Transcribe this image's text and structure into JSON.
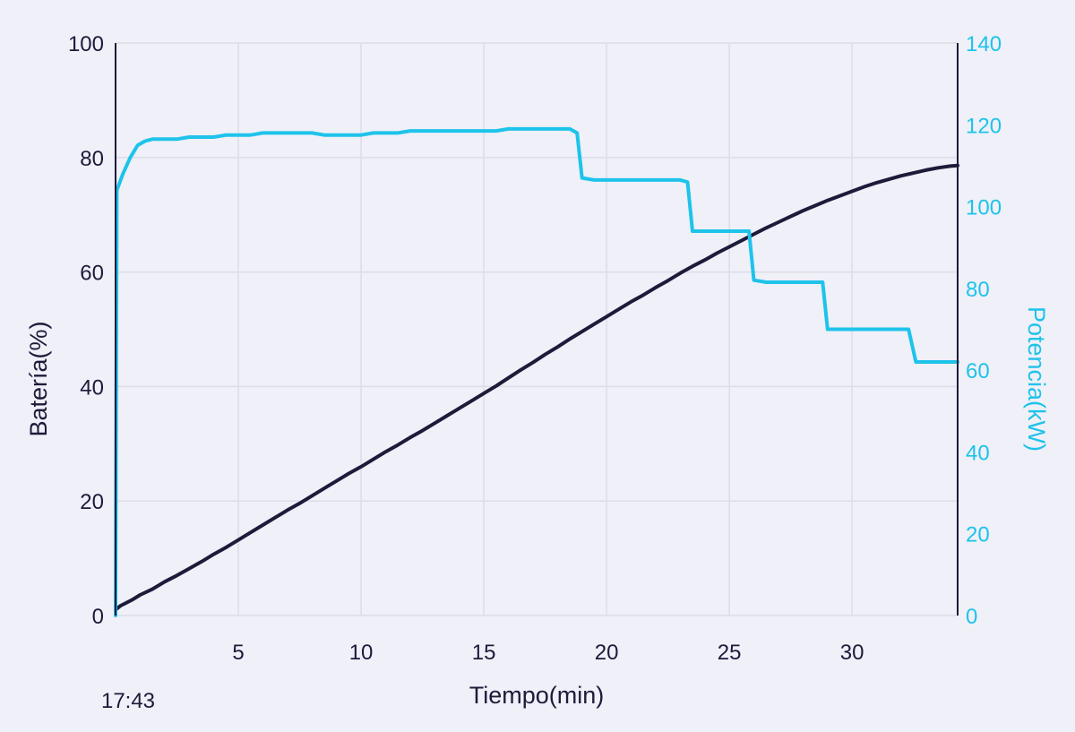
{
  "chart_data": {
    "type": "line",
    "xlabel": "Tiempo(min)",
    "ylabel_left": "Batería(%)",
    "ylabel_right": "Potencia(kW)",
    "time_label": "17:43",
    "xlim": [
      0,
      34.3
    ],
    "ylim_left": [
      0,
      100
    ],
    "ylim_right": [
      0,
      140
    ],
    "x_ticks": [
      5,
      10,
      15,
      20,
      25,
      30
    ],
    "y_left_ticks": [
      0,
      20,
      40,
      60,
      80,
      100
    ],
    "y_right_ticks": [
      0,
      20,
      40,
      60,
      80,
      100,
      120,
      140
    ],
    "grid": true,
    "colors": {
      "battery": "#1c1b3a",
      "power": "#1ec3ea",
      "grid": "#dcdde8",
      "background": "#eff0f8"
    },
    "series": [
      {
        "axis": "left",
        "x": [
          0,
          0.2,
          0.7,
          1.0,
          1.5,
          2.0,
          2.5,
          3.0,
          3.5,
          4.0,
          4.5,
          5.0,
          5.5,
          6.0,
          6.5,
          7.0,
          7.5,
          8.0,
          8.5,
          9.0,
          9.5,
          10.0,
          10.5,
          11.0,
          11.5,
          12.0,
          12.5,
          13.0,
          13.5,
          14.0,
          14.5,
          15.0,
          15.5,
          16.0,
          16.5,
          17.0,
          17.5,
          18.0,
          18.5,
          19.0,
          19.5,
          20.0,
          20.5,
          21.0,
          21.5,
          22.0,
          22.5,
          23.0,
          23.5,
          24.0,
          24.5,
          25.0,
          25.5,
          26.0,
          26.5,
          27.0,
          27.5,
          28.0,
          28.5,
          29.0,
          29.5,
          30.0,
          30.5,
          31.0,
          31.5,
          32.0,
          32.5,
          33.0,
          33.5,
          34.0,
          34.3
        ],
        "values": [
          1.0,
          1.7,
          2.8,
          3.6,
          4.6,
          5.9,
          7.0,
          8.2,
          9.4,
          10.7,
          11.9,
          13.2,
          14.5,
          15.8,
          17.1,
          18.4,
          19.6,
          20.9,
          22.2,
          23.5,
          24.8,
          26.0,
          27.3,
          28.6,
          29.8,
          31.1,
          32.3,
          33.6,
          34.9,
          36.2,
          37.5,
          38.8,
          40.1,
          41.5,
          42.9,
          44.2,
          45.6,
          46.9,
          48.3,
          49.6,
          50.9,
          52.2,
          53.5,
          54.8,
          56.0,
          57.3,
          58.5,
          59.8,
          61.0,
          62.1,
          63.3,
          64.4,
          65.5,
          66.6,
          67.7,
          68.7,
          69.7,
          70.7,
          71.6,
          72.5,
          73.3,
          74.1,
          74.9,
          75.6,
          76.2,
          76.8,
          77.3,
          77.8,
          78.2,
          78.5,
          78.6
        ]
      },
      {
        "axis": "right",
        "x": [
          0,
          0.05,
          0.3,
          0.6,
          0.9,
          1.2,
          1.5,
          2.0,
          2.5,
          3.0,
          3.5,
          4.0,
          4.5,
          5.0,
          5.5,
          6.0,
          6.5,
          7.0,
          7.5,
          8.0,
          8.5,
          9.0,
          9.5,
          10.0,
          10.5,
          11.0,
          11.5,
          12.0,
          12.5,
          13.0,
          13.5,
          14.0,
          14.5,
          15.0,
          15.5,
          16.0,
          16.5,
          17.0,
          17.5,
          18.0,
          18.5,
          18.8,
          19.0,
          19.5,
          20.0,
          20.5,
          21.0,
          21.5,
          22.0,
          22.5,
          23.0,
          23.3,
          23.5,
          24.0,
          24.5,
          25.0,
          25.5,
          25.8,
          26.0,
          26.5,
          27.0,
          27.5,
          28.0,
          28.5,
          28.8,
          29.0,
          29.5,
          30.0,
          30.5,
          31.0,
          31.5,
          32.0,
          32.3,
          32.6,
          33.0,
          33.5,
          34.0,
          34.3
        ],
        "values": [
          0,
          104,
          108,
          112,
          115,
          116,
          116.5,
          116.5,
          116.5,
          117,
          117,
          117,
          117.5,
          117.5,
          117.5,
          118,
          118,
          118,
          118,
          118,
          117.5,
          117.5,
          117.5,
          117.5,
          118,
          118,
          118,
          118.5,
          118.5,
          118.5,
          118.5,
          118.5,
          118.5,
          118.5,
          118.5,
          119,
          119,
          119,
          119,
          119,
          119,
          118,
          107,
          106.5,
          106.5,
          106.5,
          106.5,
          106.5,
          106.5,
          106.5,
          106.5,
          106,
          94,
          94,
          94,
          94,
          94,
          94,
          82,
          81.5,
          81.5,
          81.5,
          81.5,
          81.5,
          81.5,
          70,
          70,
          70,
          70,
          70,
          70,
          70,
          70,
          62,
          62,
          62,
          62,
          62
        ]
      }
    ]
  }
}
